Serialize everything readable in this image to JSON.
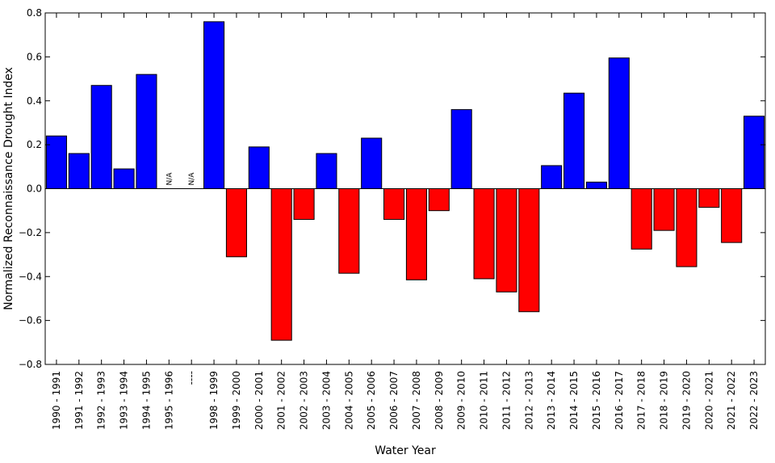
{
  "chart_data": {
    "type": "bar",
    "xlabel": "Water Year",
    "ylabel": "Normalized Reconnaissance Drought Index",
    "ylim": [
      -0.8,
      0.8
    ],
    "yticks": [
      0.8,
      0.6,
      0.4,
      0.2,
      0.0,
      -0.2,
      -0.4,
      -0.6,
      -0.8
    ],
    "ytick_labels": [
      "0.8",
      "0.6",
      "0.4",
      "0.2",
      "0.0",
      "−0.2",
      "−0.4",
      "−0.6",
      "−0.8"
    ],
    "grid": false,
    "colors": {
      "positive": "#0000ff",
      "negative": "#ff0000",
      "edge": "#000000"
    },
    "categories": [
      "1990 - 1991",
      "1991 - 1992",
      "1992 - 1993",
      "1993 - 1994",
      "1994 - 1995",
      "1995 - 1996",
      "----",
      "1998 - 1999",
      "1999 - 2000",
      "2000 - 2001",
      "2001 - 2002",
      "2002 - 2003",
      "2003 - 2004",
      "2004 - 2005",
      "2005 - 2006",
      "2006 - 2007",
      "2007 - 2008",
      "2008 - 2009",
      "2009 - 2010",
      "2010 - 2011",
      "2011 - 2012",
      "2012 - 2013",
      "2013 - 2014",
      "2014 - 2015",
      "2015 - 2016",
      "2016 - 2017",
      "2017 - 2018",
      "2018 - 2019",
      "2019 - 2020",
      "2020 - 2021",
      "2021 - 2022",
      "2022 - 2023"
    ],
    "values": [
      0.24,
      0.16,
      0.47,
      0.09,
      0.52,
      null,
      null,
      0.76,
      -0.31,
      0.19,
      -0.69,
      -0.14,
      0.16,
      -0.385,
      0.23,
      -0.14,
      -0.415,
      -0.1,
      0.36,
      -0.41,
      -0.47,
      -0.56,
      0.105,
      0.435,
      0.03,
      0.595,
      -0.275,
      -0.19,
      -0.355,
      -0.085,
      -0.245,
      0.33
    ],
    "na_text": "N/A"
  }
}
